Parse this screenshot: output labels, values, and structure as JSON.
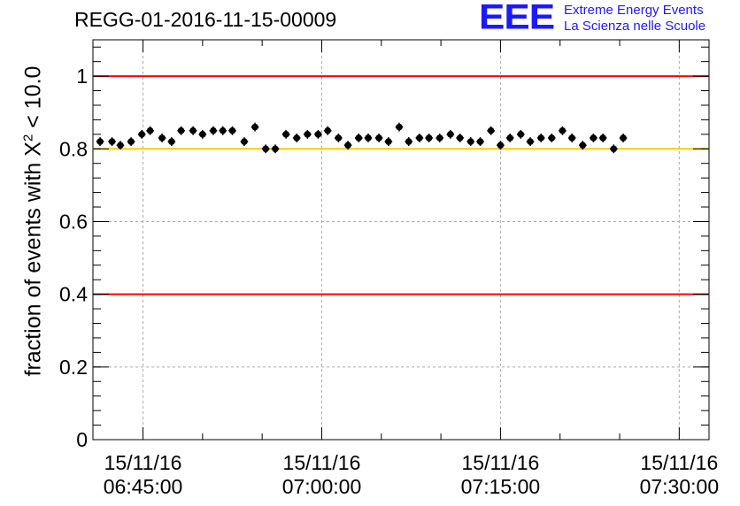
{
  "header": {
    "title": "REGG-01-2016-11-15-00009",
    "logo": "EEE",
    "logo_line1": "Extreme Energy Events",
    "logo_line2": "La Scienza nelle Scuole"
  },
  "chart_data": {
    "type": "scatter",
    "title": "REGG-01-2016-11-15-00009",
    "xlabel": "",
    "ylabel": {
      "prefix": "fraction of events with ",
      "symbol": "X",
      "superscript": "2",
      "suffix": " < 10.0"
    },
    "x_unit": "minutes after 15/11/16 06:45:00",
    "xlim": [
      -4.2,
      47.5
    ],
    "ylim": [
      0,
      1.1
    ],
    "x_ticks": [
      {
        "x": 0,
        "date": "15/11/16",
        "time": "06:45:00"
      },
      {
        "x": 15,
        "date": "15/11/16",
        "time": "07:00:00"
      },
      {
        "x": 30,
        "date": "15/11/16",
        "time": "07:15:00"
      },
      {
        "x": 45,
        "date": "15/11/16",
        "time": "07:30:00"
      }
    ],
    "y_ticks": [
      {
        "y": 0,
        "label": "0"
      },
      {
        "y": 0.2,
        "label": "0.2"
      },
      {
        "y": 0.4,
        "label": "0.4"
      },
      {
        "y": 0.6,
        "label": "0.6"
      },
      {
        "y": 0.8,
        "label": "0.8"
      },
      {
        "y": 1,
        "label": "1"
      }
    ],
    "grid": true,
    "reference_lines": [
      {
        "y": 1.0,
        "color": "#ff0000"
      },
      {
        "y": 0.4,
        "color": "#ff0000"
      },
      {
        "y": 0.8,
        "color": "#ffcc00"
      }
    ],
    "series": [
      {
        "marker_color": "#000000",
        "x_half_width": 0.32,
        "y_error": 0.012,
        "points": [
          [
            -3.6,
            0.82
          ],
          [
            -2.6,
            0.82
          ],
          [
            -1.9,
            0.81
          ],
          [
            -1.0,
            0.82
          ],
          [
            -0.1,
            0.84
          ],
          [
            0.6,
            0.85
          ],
          [
            1.6,
            0.83
          ],
          [
            2.4,
            0.82
          ],
          [
            3.2,
            0.85
          ],
          [
            4.2,
            0.85
          ],
          [
            5.0,
            0.84
          ],
          [
            5.9,
            0.85
          ],
          [
            6.7,
            0.85
          ],
          [
            7.5,
            0.85
          ],
          [
            8.5,
            0.82
          ],
          [
            9.4,
            0.86
          ],
          [
            10.3,
            0.8
          ],
          [
            11.1,
            0.8
          ],
          [
            12.0,
            0.84
          ],
          [
            12.9,
            0.83
          ],
          [
            13.8,
            0.84
          ],
          [
            14.7,
            0.84
          ],
          [
            15.5,
            0.85
          ],
          [
            16.4,
            0.83
          ],
          [
            17.2,
            0.81
          ],
          [
            18.1,
            0.83
          ],
          [
            18.9,
            0.83
          ],
          [
            19.8,
            0.83
          ],
          [
            20.6,
            0.82
          ],
          [
            21.5,
            0.86
          ],
          [
            22.3,
            0.82
          ],
          [
            23.2,
            0.83
          ],
          [
            24.0,
            0.83
          ],
          [
            24.9,
            0.83
          ],
          [
            25.8,
            0.84
          ],
          [
            26.6,
            0.83
          ],
          [
            27.5,
            0.82
          ],
          [
            28.3,
            0.82
          ],
          [
            29.2,
            0.85
          ],
          [
            30.0,
            0.81
          ],
          [
            30.8,
            0.83
          ],
          [
            31.7,
            0.84
          ],
          [
            32.5,
            0.82
          ],
          [
            33.4,
            0.83
          ],
          [
            34.3,
            0.83
          ],
          [
            35.2,
            0.85
          ],
          [
            36.0,
            0.83
          ],
          [
            36.9,
            0.81
          ],
          [
            37.8,
            0.83
          ],
          [
            38.6,
            0.83
          ],
          [
            39.5,
            0.8
          ],
          [
            40.3,
            0.83
          ]
        ]
      }
    ]
  }
}
